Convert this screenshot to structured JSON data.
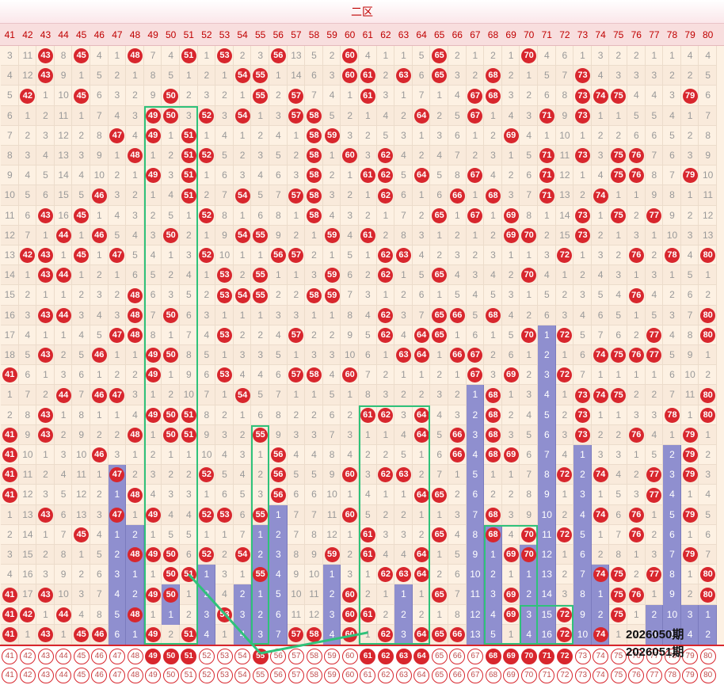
{
  "zone_title": "二区",
  "numbers": [
    41,
    42,
    43,
    44,
    45,
    46,
    47,
    48,
    49,
    50,
    51,
    52,
    53,
    54,
    55,
    56,
    57,
    58,
    59,
    60,
    61,
    62,
    63,
    64,
    65,
    66,
    67,
    68,
    69,
    70,
    71,
    72,
    73,
    74,
    75,
    76,
    77,
    78,
    79,
    80
  ],
  "periods": [
    "2026050期",
    "2026051期"
  ],
  "colors": {
    "ball": "#d8262d",
    "bar": "#8f8fcf",
    "box": "#2fc27a",
    "header": "#c00000"
  },
  "rows": [
    "3 11 43 8 45 4 1 48 7 4 51 1 53 2 3 56 13 5 2 60 4 1 1 5 65 2 1 2 1 70 4 6 1 3 2 2 1 1 4 4",
    "4 12 43 9 1 5 2 1 8 5 1 2 1 54 55 1 14 6 3 60 61 2 63 6 65 3 2 68 2 1 5 7 73 4 3 3 3 2 2 5",
    "5 42 1 10 45 6 3 2 9 50 2 3 2 1 55 2 57 7 4 1 61 3 1 7 1 4 67 68 3 2 6 8 73 74 75 4 4 3 79 6",
    "6 1 2 11 1 7 4 3 49 50 3 52 3 54 1 3 57 58 5 2 1 4 2 64 2 5 67 1 4 3 71 9 73 1 1 5 5 4 1 7",
    "7 2 3 12 2 8 47 4 49 1 51 1 4 1 2 4 1 58 59 3 2 5 3 1 3 6 1 2 69 4 1 10 1 2 2 6 6 5 2 8",
    "8 3 4 13 3 9 1 48 1 2 51 52 5 2 3 5 2 58 1 60 3 62 4 2 4 7 2 3 1 5 71 11 73 3 75 76 7 6 3 9",
    "9 4 5 14 4 10 2 1 49 3 51 1 6 3 4 6 3 58 2 1 61 62 5 64 5 8 67 4 2 6 71 12 1 4 75 76 8 7 79 10",
    "10 5 6 15 5 46 3 2 1 4 51 2 7 54 5 7 57 58 3 2 1 62 6 1 6 66 1 68 3 7 71 13 2 74 1 1 9 8 1 11",
    "11 6 43 16 45 1 4 3 2 5 1 52 8 1 6 8 1 58 4 3 2 1 7 2 65 1 67 1 69 8 1 14 73 1 75 2 77 9 2 12",
    "12 7 1 44 1 46 5 4 3 50 2 1 9 54 55 9 2 1 59 4 61 2 8 3 1 2 1 2 69 70 2 15 73 2 1 3 1 10 3 13",
    "13 42 43 1 45 1 47 5 4 1 3 52 10 1 1 56 57 2 1 5 1 62 63 4 2 3 2 3 1 1 3 72 1 3 2 76 2 78 4 80",
    "14 1 43 44 1 2 1 6 5 2 4 1 53 2 55 1 1 3 59 6 2 62 1 5 65 4 3 4 2 70 4 1 2 4 3 1 3 1 5 1",
    "15 2 1 1 2 3 2 48 6 3 5 2 53 54 55 2 2 58 59 7 3 1 2 6 1 5 4 5 3 1 5 2 3 5 4 76 4 2 6 2",
    "16 3 43 44 3 4 3 48 7 50 6 3 1 1 1 3 3 1 1 8 4 62 3 7 65 66 5 68 4 2 6 3 4 6 5 1 5 3 7 80",
    "17 4 1 1 4 5 47 48 8 1 7 4 53 2 2 4 57 2 2 9 5 62 4 64 65 1 6 1 5 70 1 72 5 7 6 2 77 4 8 80",
    "18 5 43 2 5 46 1 1 49 50 8 5 1 3 3 5 1 3 3 10 6 1 63 64 1 66 67 2 6 1 2 1 6 74 75 76 77 5 9 1",
    "41 6 1 3 6 1 2 2 49 1 9 6 53 4 4 6 57 58 4 60 7 2 1 1 2 1 67 3 69 2 3 72 7 1 1 1 1 6 10 2",
    "1 7 2 44 7 46 47 3 1 2 10 7 1 54 5 7 1 1 5 1 8 3 2 2 3 2 1 68 1 3 4 1 73 74 75 2 2 7 11 80",
    "2 8 43 1 8 1 1 4 49 50 51 8 2 1 6 8 2 2 6 2 61 62 3 64 4 3 2 68 2 4 5 2 73 1 1 3 3 78 1 80",
    "41 9 43 2 9 2 2 48 1 50 51 9 3 2 55 9 3 3 7 3 1 1 4 64 5 66 3 68 3 5 6 3 73 2 2 76 4 1 79 1",
    "41 10 1 3 10 46 3 1 2 1 1 10 4 3 1 56 4 4 8 4 2 2 5 1 6 66 4 68 69 6 7 4 1 3 3 1 5 2 79 2",
    "41 11 2 4 11 1 47 2 3 2 2 52 5 4 2 56 5 5 9 60 3 62 63 2 7 1 5 1 1 7 8 72 2 74 4 2 77 3 79 3",
    "41 12 3 5 12 2 1 48 4 3 3 1 6 5 3 56 6 6 10 1 4 1 1 64 65 2 6 2 2 8 9 1 3 1 5 3 77 4 1 4",
    "1 13 43 6 13 3 47 1 49 4 4 52 53 6 55 1 7 7 11 60 5 2 2 1 1 3 7 68 3 9 10 2 4 74 6 76 1 5 79 5",
    "2 14 1 7 45 4 1 2 1 5 5 1 1 7 1 2 7 8 12 1 61 3 3 2 65 4 8 68 4 70 11 72 5 1 7 76 2 6 1 6",
    "3 15 2 8 1 5 2 48 49 50 6 52 2 54 2 3 8 9 59 2 61 4 4 64 1 5 9 1 69 70 12 1 6 2 8 1 3 7 79 7",
    "4 16 3 9 2 6 3 1 1 50 51 1 3 1 55 4 9 10 1 3 1 62 63 64 2 6 10 2 1 1 13 2 7 74 75 2 77 8 1 80",
    "41 17 43 10 3 7 4 2 49 50 1 2 4 2 1 5 10 11 2 60 2 1 1 1 65 7 11 3 69 2 14 3 8 1 75 76 1 9 2 80",
    "41 42 1 44 4 8 5 48 1 1 2 3 53 3 2 6 11 12 3 60 61 2 2 2 1 8 12 4 69 3 15 72 9 2 75 1 2 10 3 1",
    "41 1 43 1 45 46 6 1 49 2 51 4 1 4 3 7 57 58 4 60 1 62 3 64 65 66 13 5 1 4 16 72 10 74 1 2 3 1 4 2"
  ],
  "bars": [
    {
      "num": 47,
      "from": 21,
      "to": 29
    },
    {
      "num": 48,
      "from": 24,
      "to": 29
    },
    {
      "num": 50,
      "from": 27,
      "to": 28
    },
    {
      "num": 52,
      "from": 26,
      "to": 29
    },
    {
      "num": 54,
      "from": 27,
      "to": 29
    },
    {
      "num": 55,
      "from": 24,
      "to": 29
    },
    {
      "num": 56,
      "from": 23,
      "to": 29
    },
    {
      "num": 59,
      "from": 26,
      "to": 29
    },
    {
      "num": 63,
      "from": 27,
      "to": 29
    },
    {
      "num": 67,
      "from": 17,
      "to": 29
    },
    {
      "num": 68,
      "from": 24,
      "to": 29
    },
    {
      "num": 70,
      "from": 25,
      "to": 29
    },
    {
      "num": 71,
      "from": 14,
      "to": 29
    },
    {
      "num": 73,
      "from": 20,
      "to": 29
    },
    {
      "num": 74,
      "from": 26,
      "to": 29
    },
    {
      "num": 77,
      "from": 28,
      "to": 29
    },
    {
      "num": 78,
      "from": 20,
      "to": 29
    },
    {
      "num": 79,
      "from": 28,
      "to": 29
    },
    {
      "num": 80,
      "from": 28,
      "to": 29
    }
  ],
  "boxes": [
    {
      "from_num": 49,
      "to_num": 51,
      "from_row": 3,
      "to_row": 29
    },
    {
      "from_num": 55,
      "to_num": 55,
      "from_row": 19,
      "to_row": 29
    },
    {
      "from_num": 61,
      "to_num": 64,
      "from_row": 18,
      "to_row": 29
    },
    {
      "from_num": 68,
      "to_num": 70,
      "from_row": 24,
      "to_row": 29
    },
    {
      "from_num": 70,
      "to_num": 72,
      "from_row": 28,
      "to_row": 29
    }
  ],
  "trend_link": {
    "from_num": 51,
    "to_num": 55,
    "to_num2": 61
  },
  "footer_hits_row1": [
    49,
    50,
    51,
    55,
    61,
    62,
    63,
    64,
    68,
    69,
    70,
    71,
    72
  ],
  "footer_hits_row2": []
}
